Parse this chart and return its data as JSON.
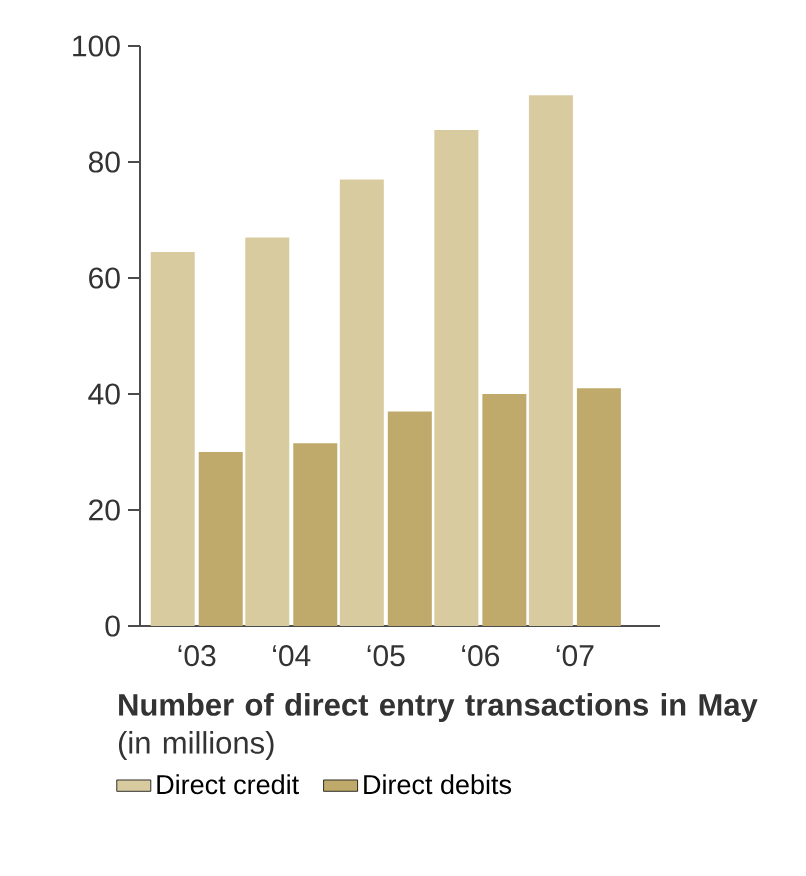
{
  "chart_data": {
    "type": "bar",
    "title": "**Number of direct entry transactions in May** (in millions)",
    "categories": [
      "‘03",
      "‘04",
      "‘05",
      "‘06",
      "‘07"
    ],
    "series": [
      {
        "name": "Direct credit",
        "color": "#d9cba0",
        "values": [
          64.5,
          67,
          77,
          85.5,
          91.5
        ]
      },
      {
        "name": "Direct debits",
        "color": "#bfaa6b",
        "values": [
          30,
          31.5,
          37,
          40,
          41
        ]
      }
    ],
    "ylim": [
      0,
      100
    ],
    "yticks": [
      0,
      20,
      40,
      60,
      80,
      100
    ],
    "grid": false,
    "legend": "bottom"
  }
}
